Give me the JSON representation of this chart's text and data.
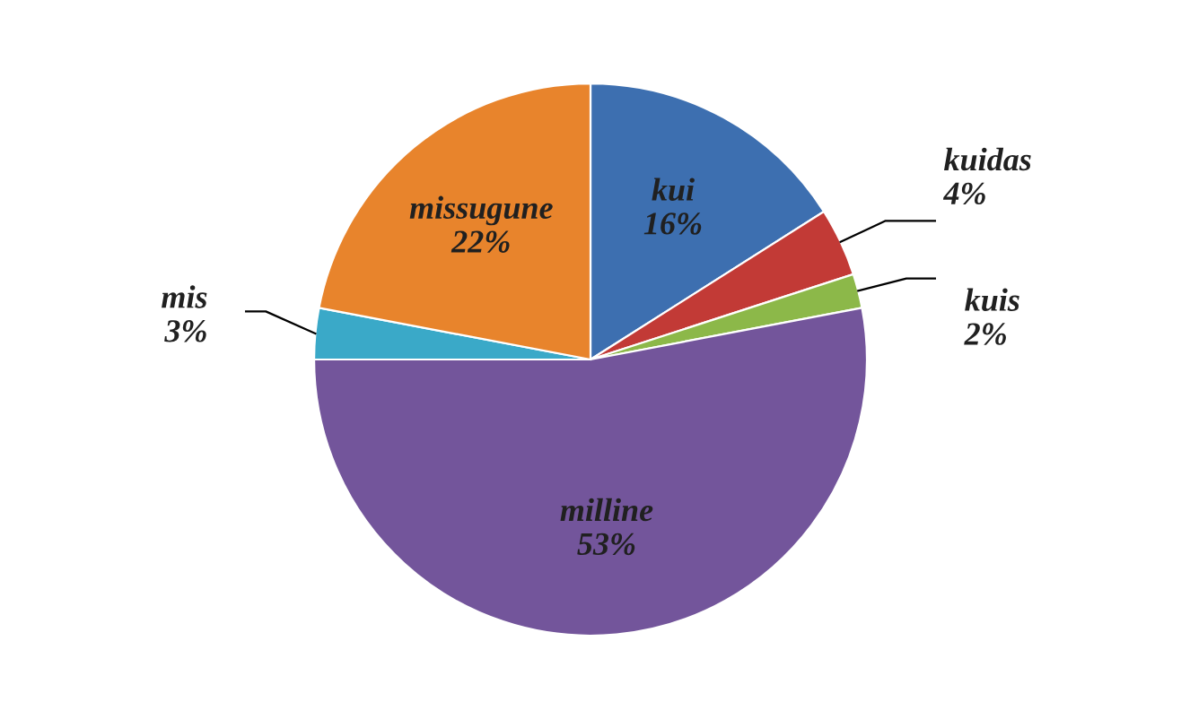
{
  "chart_data": {
    "type": "pie",
    "categories": [
      "kui",
      "kuidas",
      "kuis",
      "milline",
      "mis",
      "missugune"
    ],
    "values": [
      16,
      4,
      2,
      53,
      3,
      22
    ],
    "value_labels": [
      "16%",
      "4%",
      "2%",
      "53%",
      "3%",
      "22%"
    ],
    "colors": [
      "#3d6fb0",
      "#c23a36",
      "#8cb849",
      "#73559b",
      "#3aa9c8",
      "#e8842c"
    ],
    "legend": false
  }
}
